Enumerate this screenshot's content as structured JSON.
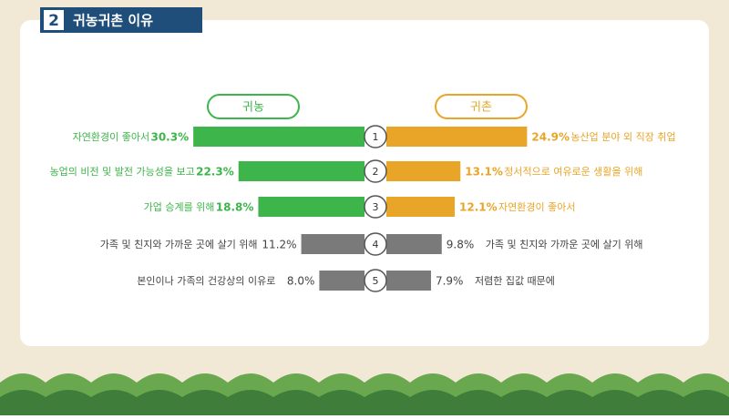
{
  "badge": "2",
  "title": "귀농귀촌 이유",
  "chart_data": {
    "type": "butterfly",
    "ranks": [
      1,
      2,
      3,
      4,
      5
    ],
    "series": [
      {
        "name": "귀농",
        "color": "#3db54a",
        "colors": [
          "#3db54a",
          "#3db54a",
          "#3db54a",
          "#7a7a7a",
          "#7a7a7a"
        ],
        "categories": [
          "자연환경이 좋아서",
          "농업의 비전 및 발전 가능성을 보고",
          "가업 승계를 위해",
          "가족 및 친지와 가까운 곳에 살기 위해",
          "본인이나 가족의 건강상의 이유로"
        ],
        "values": [
          30.3,
          22.3,
          18.8,
          11.2,
          8.0
        ],
        "value_labels": [
          "30.3%",
          "22.3%",
          "18.8%",
          "11.2%",
          "8.0%"
        ]
      },
      {
        "name": "귀촌",
        "color": "#e9a527",
        "colors": [
          "#e9a527",
          "#e9a527",
          "#e9a527",
          "#7a7a7a",
          "#7a7a7a"
        ],
        "categories": [
          "농산업 분야 외 직장 취업",
          "정서적으로 여유로운 생활을 위해",
          "자연환경이 좋아서",
          "가족 및 친지와 가까운 곳에 살기 위해",
          "저렴한 집값 때문에"
        ],
        "values": [
          24.9,
          13.1,
          12.1,
          9.8,
          7.9
        ],
        "value_labels": [
          "24.9%",
          "13.1%",
          "12.1%",
          "9.8%",
          "7.9%"
        ]
      }
    ]
  }
}
